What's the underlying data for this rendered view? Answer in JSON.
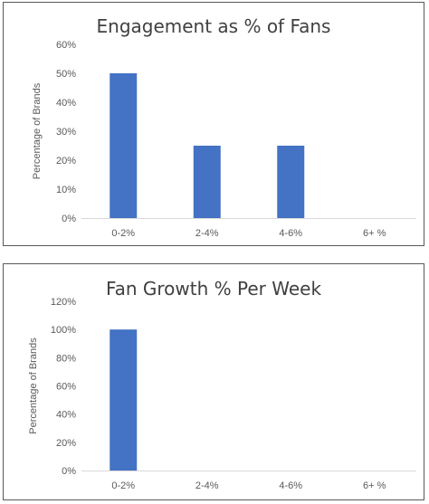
{
  "chart_data": [
    {
      "type": "bar",
      "title": "Engagement as % of Fans",
      "xlabel": "",
      "ylabel": "Percentage of Brands",
      "categories": [
        "0-2%",
        "2-4%",
        "4-6%",
        "6+ %"
      ],
      "values": [
        0.5,
        0.25,
        0.25,
        0
      ],
      "ylim": [
        0,
        0.6
      ],
      "yticks": [
        "0%",
        "10%",
        "20%",
        "30%",
        "40%",
        "50%",
        "60%"
      ],
      "grid": false,
      "color": "#4472c4"
    },
    {
      "type": "bar",
      "title": "Fan Growth % Per Week",
      "xlabel": "",
      "ylabel": "Percentage of Brands",
      "categories": [
        "0-2%",
        "2-4%",
        "4-6%",
        "6+ %"
      ],
      "values": [
        1.0,
        0,
        0,
        0
      ],
      "ylim": [
        0,
        1.2
      ],
      "yticks": [
        "0%",
        "20%",
        "40%",
        "60%",
        "80%",
        "100%",
        "120%"
      ],
      "grid": false,
      "color": "#4472c4"
    }
  ]
}
